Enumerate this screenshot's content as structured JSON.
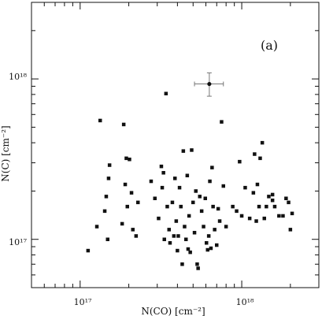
{
  "chart_data": {
    "type": "scatter",
    "panel_label": "(a)",
    "xlabel": "N(CO) [cm⁻²]",
    "ylabel": "N(C) [cm⁻²]",
    "xscale": "log",
    "yscale": "log",
    "xlim": [
      5e+16,
      3e+18
    ],
    "ylim": [
      5e+16,
      3e+18
    ],
    "xticks": [
      {
        "value": 1e+17,
        "label": "10¹⁷"
      },
      {
        "value": 1e+18,
        "label": "10¹⁸"
      }
    ],
    "yticks": [
      {
        "value": 1e+17,
        "label": "10¹⁷"
      },
      {
        "value": 1e+18,
        "label": "10¹⁸"
      }
    ],
    "grid": false,
    "error_bar_point": {
      "x": 6.3e+17,
      "y": 9.3e+17,
      "x_err": [
        1.2e+17,
        1.4e+17
      ],
      "y_err": [
        1.5e+17,
        1.6e+17
      ]
    },
    "points": [
      [
        1.12e+17,
        8.5e+16
      ],
      [
        1.27e+17,
        1.2e+17
      ],
      [
        1.33e+17,
        5.5e+17
      ],
      [
        1.42e+17,
        1.5e+17
      ],
      [
        1.45e+17,
        1.85e+17
      ],
      [
        1.48e+17,
        1e+17
      ],
      [
        1.5e+17,
        2.4e+17
      ],
      [
        1.52e+17,
        2.9e+17
      ],
      [
        1.82e+17,
        1.25e+17
      ],
      [
        1.86e+17,
        5.2e+17
      ],
      [
        1.9e+17,
        2.2e+17
      ],
      [
        1.93e+17,
        3.2e+17
      ],
      [
        1.96e+17,
        1.6e+17
      ],
      [
        2.02e+17,
        3.15e+17
      ],
      [
        2.08e+17,
        1.95e+17
      ],
      [
        2.12e+17,
        1.15e+17
      ],
      [
        2.22e+17,
        1.05e+17
      ],
      [
        2.28e+17,
        1.7e+17
      ],
      [
        2.75e+17,
        2.3e+17
      ],
      [
        2.9e+17,
        1.8e+17
      ],
      [
        3.06e+17,
        1.35e+17
      ],
      [
        3.18e+17,
        2.85e+17
      ],
      [
        3.22e+17,
        2.1e+17
      ],
      [
        3.28e+17,
        2.6e+17
      ],
      [
        3.32e+17,
        1e+17
      ],
      [
        3.4e+17,
        8.1e+17
      ],
      [
        3.46e+17,
        1.6e+17
      ],
      [
        3.55e+17,
        1.15e+17
      ],
      [
        3.6e+17,
        9.5e+16
      ],
      [
        3.72e+17,
        1.7e+17
      ],
      [
        3.8e+17,
        1.05e+17
      ],
      [
        3.86e+17,
        2.4e+17
      ],
      [
        3.93e+17,
        1.3e+17
      ],
      [
        4e+17,
        8.5e+16
      ],
      [
        4.05e+17,
        1.05e+17
      ],
      [
        4.12e+17,
        2.1e+17
      ],
      [
        4.2e+17,
        1.6e+17
      ],
      [
        4.28e+17,
        7e+16
      ],
      [
        4.35e+17,
        3.55e+17
      ],
      [
        4.43e+17,
        1.2e+17
      ],
      [
        4.52e+17,
        1e+17
      ],
      [
        4.6e+17,
        2.5e+17
      ],
      [
        4.66e+17,
        8.7e+16
      ],
      [
        4.72e+17,
        1.4e+17
      ],
      [
        4.8e+17,
        8.3e+16
      ],
      [
        4.9e+17,
        3.6e+17
      ],
      [
        5e+17,
        1.7e+17
      ],
      [
        5.1e+17,
        1.1e+17
      ],
      [
        5.2e+17,
        2e+17
      ],
      [
        5.3e+17,
        7e+16
      ],
      [
        5.37e+17,
        6.6e+16
      ],
      [
        5.5e+17,
        1.85e+17
      ],
      [
        5.65e+17,
        1.5e+17
      ],
      [
        5.8e+17,
        1.2e+17
      ],
      [
        5.95e+17,
        1.8e+17
      ],
      [
        6.05e+17,
        9.5e+16
      ],
      [
        6.15e+17,
        8.6e+16
      ],
      [
        6.25e+17,
        1.05e+17
      ],
      [
        6.35e+17,
        2.3e+17
      ],
      [
        6.45e+17,
        8.8e+16
      ],
      [
        6.55e+17,
        2.8e+17
      ],
      [
        6.65e+17,
        1.6e+17
      ],
      [
        6.8e+17,
        1.15e+17
      ],
      [
        7e+17,
        9.2e+16
      ],
      [
        7.15e+17,
        1.55e+17
      ],
      [
        7.3e+17,
        1.3e+17
      ],
      [
        7.5e+17,
        5.4e+17
      ],
      [
        7.7e+17,
        2.15e+17
      ],
      [
        8e+17,
        1.2e+17
      ],
      [
        8.8e+17,
        1.6e+17
      ],
      [
        9.3e+17,
        1.5e+17
      ],
      [
        9.7e+17,
        3.05e+17
      ],
      [
        1e+18,
        1.4e+17
      ],
      [
        1.05e+18,
        2.1e+17
      ],
      [
        1.12e+18,
        1.35e+17
      ],
      [
        1.18e+18,
        1.95e+17
      ],
      [
        1.2e+18,
        3.4e+17
      ],
      [
        1.23e+18,
        1.3e+17
      ],
      [
        1.28e+18,
        1.6e+17
      ],
      [
        1.3e+18,
        3.2e+17
      ],
      [
        1.34e+18,
        4e+17
      ],
      [
        1.38e+18,
        1.35e+17
      ],
      [
        1.42e+18,
        1.6e+17
      ],
      [
        1.47e+18,
        1.85e+17
      ],
      [
        1.55e+18,
        1.9e+17
      ],
      [
        1.6e+18,
        1.6e+17
      ],
      [
        1.7e+18,
        1.4e+17
      ],
      [
        1.8e+18,
        1.4e+17
      ],
      [
        1.88e+18,
        1.8e+17
      ],
      [
        1.95e+18,
        1.7e+17
      ],
      [
        2e+18,
        1.15e+17
      ],
      [
        2.05e+18,
        1.45e+17
      ],
      [
        1.55e+18,
        1.75e+17
      ],
      [
        1.25e+18,
        2.2e+17
      ]
    ]
  }
}
